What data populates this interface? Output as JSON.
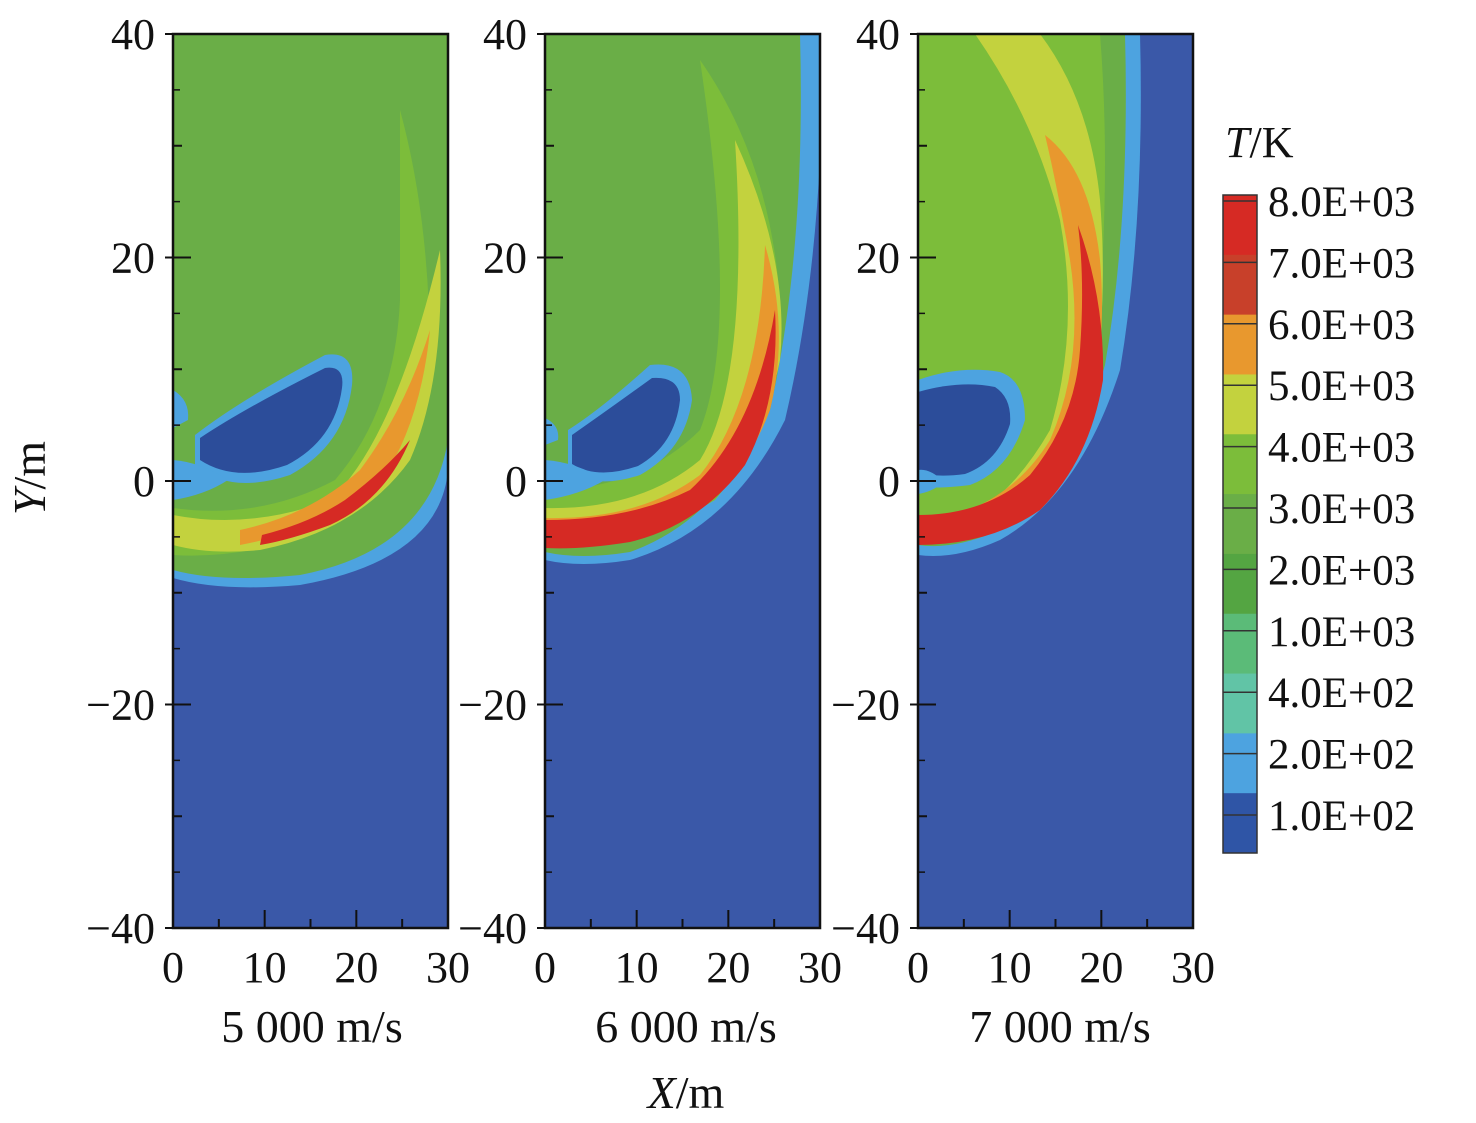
{
  "chart_data": {
    "type": "heatmap",
    "title": "",
    "xlabel": "X/m",
    "ylabel": "Y/m",
    "xlim": [
      0,
      30
    ],
    "ylim": [
      -40,
      40
    ],
    "x_ticks": [
      "0",
      "10",
      "20",
      "30"
    ],
    "y_ticks": [
      "40",
      "20",
      "0",
      "−20",
      "−40"
    ],
    "panels": [
      {
        "label": "5 000 m/s",
        "velocity": 5000
      },
      {
        "label": "6 000 m/s",
        "velocity": 6000
      },
      {
        "label": "7 000 m/s",
        "velocity": 7000
      }
    ],
    "colorbar": {
      "title_italic": "T",
      "title_rest": "/K",
      "levels": [
        "8.0E+03",
        "7.0E+03",
        "6.0E+03",
        "5.0E+03",
        "4.0E+03",
        "3.0E+03",
        "2.0E+03",
        "1.0E+03",
        "4.0E+02",
        "2.0E+02",
        "1.0E+02"
      ],
      "colors": [
        "#d62a24",
        "#c8402a",
        "#e8982e",
        "#c3d23e",
        "#7cbd3a",
        "#6aae47",
        "#54a542",
        "#5bbb78",
        "#61c4a6",
        "#4da3e0",
        "#2f55a6"
      ]
    },
    "background_color": "#3a58a8"
  }
}
